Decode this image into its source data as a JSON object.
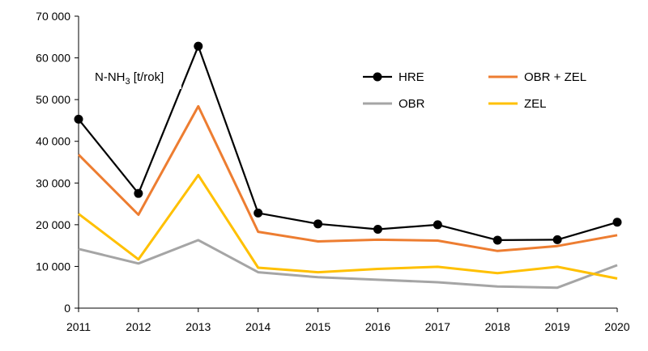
{
  "chart_data": {
    "type": "line",
    "title": "",
    "xlabel": "",
    "ylabel": "",
    "unit_label": {
      "prefix": "N-NH",
      "subscript": "3",
      "suffix": " [t/rok]"
    },
    "x": [
      "2011",
      "2012",
      "2013",
      "2014",
      "2015",
      "2016",
      "2017",
      "2018",
      "2019",
      "2020"
    ],
    "ylim": [
      0,
      70000
    ],
    "yticks": [
      0,
      10000,
      20000,
      30000,
      40000,
      50000,
      60000,
      70000
    ],
    "ytick_labels": [
      "0",
      "10 000",
      "20 000",
      "30 000",
      "40 000",
      "50 000",
      "60 000",
      "70 000"
    ],
    "grid": false,
    "legend_position": "top-right",
    "series": [
      {
        "name": "HRE",
        "color": "#000000",
        "markers": true,
        "values": [
          45300,
          27500,
          62800,
          22800,
          20200,
          18900,
          20000,
          16300,
          16400,
          20600
        ]
      },
      {
        "name": "OBR + ZEL",
        "color": "#ED7D31",
        "markers": false,
        "values": [
          36800,
          22400,
          48400,
          18300,
          16000,
          16400,
          16200,
          13700,
          14900,
          17500
        ]
      },
      {
        "name": "OBR",
        "color": "#A5A5A5",
        "markers": false,
        "values": [
          14200,
          10700,
          16300,
          8600,
          7400,
          6800,
          6200,
          5200,
          4900,
          10300
        ]
      },
      {
        "name": "ZEL",
        "color": "#FFC000",
        "markers": false,
        "values": [
          22600,
          11700,
          31900,
          9700,
          8600,
          9400,
          9900,
          8400,
          9900,
          7100
        ]
      }
    ],
    "legend_order": [
      "HRE",
      "OBR + ZEL",
      "OBR",
      "ZEL"
    ]
  }
}
